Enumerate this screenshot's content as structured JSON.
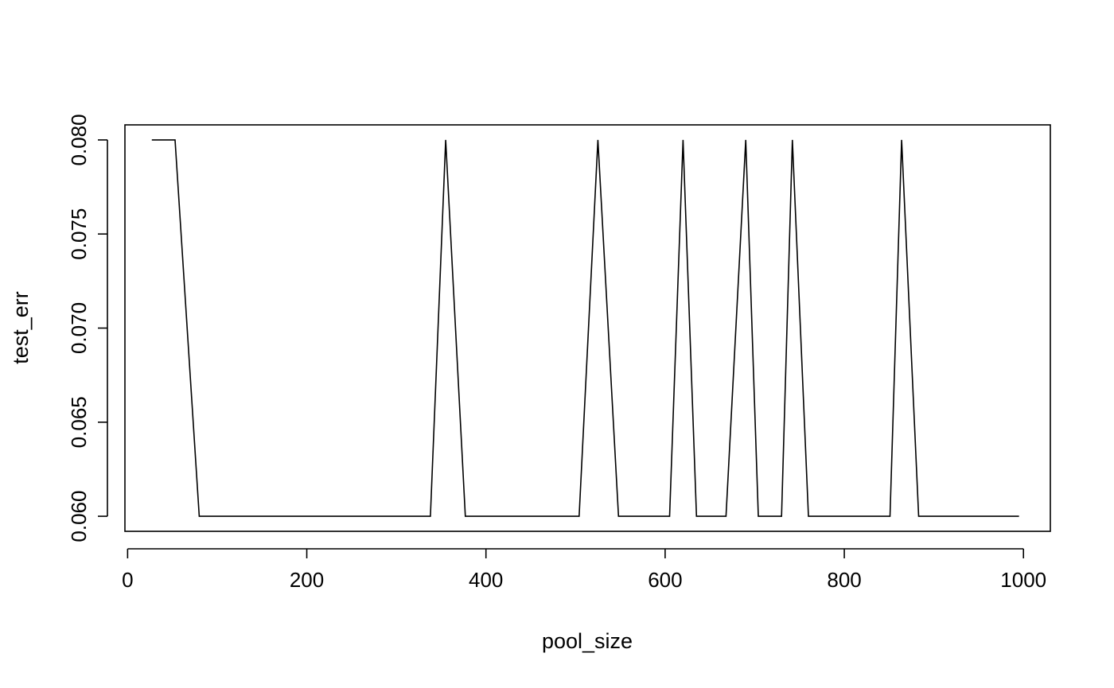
{
  "chart_data": {
    "type": "line",
    "title": "",
    "xlabel": "pool_size",
    "ylabel": "test_err",
    "xlim": [
      -3,
      1030
    ],
    "ylim": [
      0.0592,
      0.0808
    ],
    "x_ticks": [
      0,
      200,
      400,
      600,
      800,
      1000
    ],
    "x_tick_labels": [
      "0",
      "200",
      "400",
      "600",
      "800",
      "1000"
    ],
    "y_ticks": [
      0.06,
      0.065,
      0.07,
      0.075,
      0.08
    ],
    "y_tick_labels": [
      "0.060",
      "0.065",
      "0.070",
      "0.075",
      "0.080"
    ],
    "grid": false,
    "legend": "none",
    "line_color": "#000000",
    "series": [
      {
        "x": [
          27,
          53,
          80,
          338,
          355,
          377,
          504,
          525,
          548,
          605,
          620,
          635,
          668,
          690,
          704,
          730,
          742,
          760,
          851,
          864,
          883,
          995
        ],
        "y": [
          0.08,
          0.08,
          0.06,
          0.06,
          0.08,
          0.06,
          0.06,
          0.08,
          0.06,
          0.06,
          0.08,
          0.06,
          0.06,
          0.08,
          0.06,
          0.06,
          0.08,
          0.06,
          0.06,
          0.08,
          0.06,
          0.06
        ]
      }
    ]
  }
}
